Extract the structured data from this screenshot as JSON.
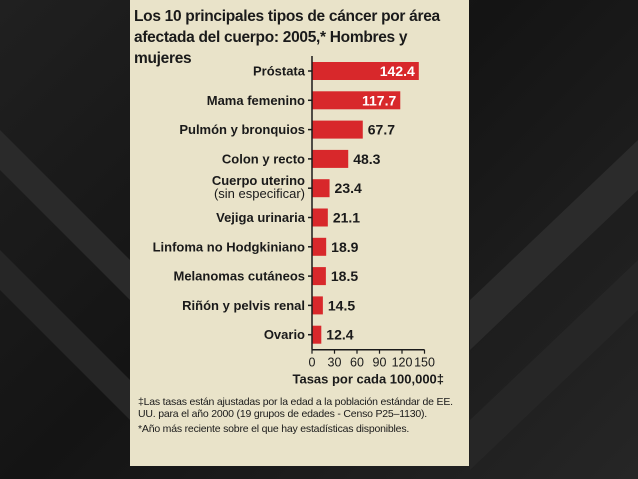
{
  "slide": {
    "background_color": "#1c1c1c",
    "figure_background": "#e9e3c9",
    "bar_color": "#d8282b"
  },
  "chart_data": {
    "type": "bar",
    "orientation": "horizontal",
    "title": "Los 10 principales tipos de cáncer por área afectada del cuerpo: 2005,* Hombres y mujeres",
    "categories": [
      "Próstata",
      "Mama femenino",
      "Pulmón y bronquios",
      "Colon y recto",
      "Cuerpo uterino (sin especificar)",
      "Vejiga urinaria",
      "Linfoma no Hodgkiniano",
      "Melanomas cutáneos",
      "Riñón y pelvis renal",
      "Ovario"
    ],
    "values": [
      142.4,
      117.7,
      67.7,
      48.3,
      23.4,
      21.1,
      18.9,
      18.5,
      14.5,
      12.4
    ],
    "value_labels": [
      "142.4",
      "117.7",
      "67.7",
      "48.3",
      "23.4",
      "21.1",
      "18.9",
      "18.5",
      "14.5",
      "12.4"
    ],
    "xlabel": "Tasas por cada 100,000‡",
    "xlim": [
      0,
      150
    ],
    "xticks": [
      "0",
      "30",
      "60",
      "90",
      "120",
      "150"
    ],
    "grid": false,
    "legend": "none"
  },
  "footnotes": {
    "note1": "‡Las tasas están ajustadas por la edad a la población estándar de EE. UU. para el año 2000 (19 grupos de edades - Censo P25–1130).",
    "note2": "*Año más reciente sobre el que hay estadísticas disponibles."
  }
}
